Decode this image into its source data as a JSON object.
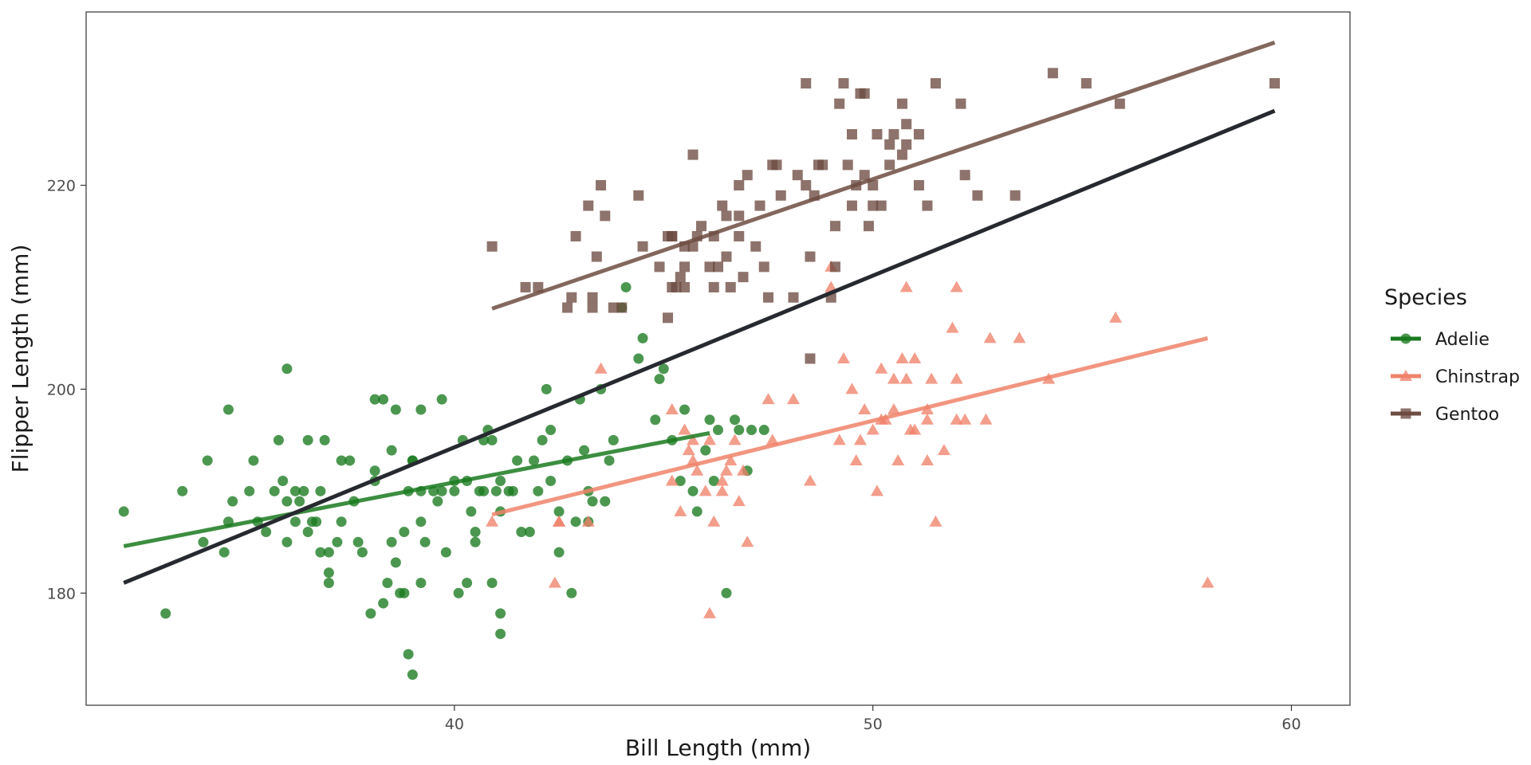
{
  "chart_data": {
    "type": "scatter",
    "xlabel": "Bill Length (mm)",
    "ylabel": "Flipper Length (mm)",
    "xlim": [
      31.2,
      61.4
    ],
    "ylim": [
      169,
      237
    ],
    "xticks": [
      40,
      50,
      60
    ],
    "yticks": [
      180,
      200,
      220
    ],
    "grid": false,
    "legend": {
      "title": "Species",
      "placement": "right"
    },
    "series": [
      {
        "name": "Adelie",
        "color": "#1a7a1f",
        "marker": "circle",
        "points": [
          [
            32.1,
            188
          ],
          [
            33.1,
            178
          ],
          [
            33.5,
            190
          ],
          [
            34.0,
            185
          ],
          [
            34.1,
            193
          ],
          [
            34.5,
            184
          ],
          [
            34.6,
            187
          ],
          [
            34.6,
            198
          ],
          [
            34.7,
            189
          ],
          [
            35.1,
            190
          ],
          [
            35.2,
            193
          ],
          [
            35.3,
            187
          ],
          [
            35.5,
            186
          ],
          [
            35.7,
            190
          ],
          [
            35.8,
            195
          ],
          [
            35.9,
            191
          ],
          [
            36.0,
            185
          ],
          [
            36.0,
            189
          ],
          [
            36.0,
            202
          ],
          [
            36.2,
            187
          ],
          [
            36.2,
            190
          ],
          [
            36.3,
            189
          ],
          [
            36.4,
            190
          ],
          [
            36.5,
            195
          ],
          [
            36.5,
            186
          ],
          [
            36.6,
            187
          ],
          [
            36.7,
            187
          ],
          [
            36.8,
            184
          ],
          [
            36.8,
            190
          ],
          [
            36.9,
            195
          ],
          [
            37.0,
            182
          ],
          [
            37.0,
            181
          ],
          [
            37.0,
            184
          ],
          [
            37.2,
            185
          ],
          [
            37.3,
            187
          ],
          [
            37.3,
            193
          ],
          [
            37.5,
            193
          ],
          [
            37.6,
            189
          ],
          [
            37.7,
            185
          ],
          [
            37.8,
            184
          ],
          [
            38.0,
            178
          ],
          [
            38.1,
            192
          ],
          [
            38.1,
            191
          ],
          [
            38.1,
            199
          ],
          [
            38.3,
            179
          ],
          [
            38.3,
            199
          ],
          [
            38.4,
            181
          ],
          [
            38.5,
            185
          ],
          [
            38.5,
            194
          ],
          [
            38.6,
            183
          ],
          [
            38.6,
            198
          ],
          [
            38.7,
            180
          ],
          [
            38.8,
            180
          ],
          [
            38.8,
            186
          ],
          [
            38.9,
            190
          ],
          [
            38.9,
            174
          ],
          [
            39.0,
            172
          ],
          [
            39.0,
            193
          ],
          [
            39.0,
            193
          ],
          [
            39.2,
            181
          ],
          [
            39.2,
            187
          ],
          [
            39.2,
            190
          ],
          [
            39.2,
            198
          ],
          [
            39.3,
            185
          ],
          [
            39.5,
            190
          ],
          [
            39.6,
            189
          ],
          [
            39.7,
            190
          ],
          [
            39.7,
            199
          ],
          [
            39.8,
            184
          ],
          [
            40.0,
            191
          ],
          [
            40.0,
            190
          ],
          [
            40.1,
            180
          ],
          [
            40.2,
            195
          ],
          [
            40.3,
            181
          ],
          [
            40.3,
            191
          ],
          [
            40.4,
            188
          ],
          [
            40.5,
            185
          ],
          [
            40.5,
            186
          ],
          [
            40.6,
            190
          ],
          [
            40.7,
            190
          ],
          [
            40.7,
            195
          ],
          [
            40.8,
            196
          ],
          [
            40.9,
            195
          ],
          [
            40.9,
            181
          ],
          [
            41.0,
            190
          ],
          [
            41.1,
            176
          ],
          [
            41.1,
            188
          ],
          [
            41.1,
            178
          ],
          [
            41.1,
            191
          ],
          [
            41.3,
            190
          ],
          [
            41.4,
            190
          ],
          [
            41.5,
            193
          ],
          [
            41.6,
            186
          ],
          [
            41.8,
            186
          ],
          [
            41.9,
            193
          ],
          [
            42.0,
            190
          ],
          [
            42.1,
            195
          ],
          [
            42.2,
            200
          ],
          [
            42.3,
            196
          ],
          [
            42.3,
            191
          ],
          [
            42.5,
            188
          ],
          [
            42.5,
            184
          ],
          [
            42.7,
            193
          ],
          [
            42.8,
            180
          ],
          [
            42.9,
            187
          ],
          [
            43.0,
            199
          ],
          [
            43.1,
            194
          ],
          [
            43.2,
            187
          ],
          [
            43.2,
            190
          ],
          [
            43.3,
            189
          ],
          [
            43.5,
            200
          ],
          [
            43.6,
            189
          ],
          [
            43.7,
            193
          ],
          [
            43.8,
            195
          ],
          [
            44.0,
            208
          ],
          [
            44.1,
            210
          ],
          [
            44.4,
            203
          ],
          [
            44.5,
            205
          ],
          [
            44.8,
            197
          ],
          [
            44.9,
            201
          ],
          [
            45.0,
            202
          ],
          [
            45.2,
            195
          ],
          [
            45.4,
            191
          ],
          [
            45.5,
            198
          ],
          [
            45.7,
            190
          ],
          [
            45.8,
            188
          ],
          [
            46.0,
            194
          ],
          [
            46.1,
            197
          ],
          [
            46.2,
            191
          ],
          [
            46.3,
            196
          ],
          [
            46.5,
            180
          ],
          [
            46.7,
            197
          ],
          [
            46.8,
            196
          ],
          [
            47.0,
            192
          ],
          [
            47.1,
            196
          ],
          [
            47.4,
            196
          ]
        ],
        "trend": [
          [
            32.1,
            184.6
          ],
          [
            46.1,
            195.7
          ]
        ]
      },
      {
        "name": "Chinstrap",
        "color": "#f0826a",
        "marker": "triangle",
        "points": [
          [
            40.9,
            187
          ],
          [
            42.4,
            181
          ],
          [
            42.5,
            187
          ],
          [
            42.5,
            187
          ],
          [
            43.2,
            187
          ],
          [
            43.5,
            202
          ],
          [
            45.2,
            191
          ],
          [
            45.2,
            198
          ],
          [
            45.4,
            188
          ],
          [
            45.5,
            196
          ],
          [
            45.6,
            194
          ],
          [
            45.7,
            195
          ],
          [
            45.7,
            193
          ],
          [
            45.8,
            192
          ],
          [
            46.0,
            190
          ],
          [
            46.1,
            178
          ],
          [
            46.1,
            195
          ],
          [
            46.2,
            187
          ],
          [
            46.4,
            190
          ],
          [
            46.4,
            191
          ],
          [
            46.5,
            192
          ],
          [
            46.6,
            193
          ],
          [
            46.7,
            195
          ],
          [
            46.8,
            189
          ],
          [
            46.9,
            192
          ],
          [
            47.0,
            185
          ],
          [
            47.5,
            199
          ],
          [
            47.6,
            195
          ],
          [
            48.1,
            199
          ],
          [
            48.5,
            191
          ],
          [
            49.0,
            210
          ],
          [
            49.0,
            212
          ],
          [
            49.2,
            195
          ],
          [
            49.3,
            203
          ],
          [
            49.5,
            200
          ],
          [
            49.6,
            193
          ],
          [
            49.7,
            195
          ],
          [
            49.8,
            198
          ],
          [
            50.0,
            196
          ],
          [
            50.1,
            190
          ],
          [
            50.2,
            197
          ],
          [
            50.2,
            202
          ],
          [
            50.3,
            197
          ],
          [
            50.5,
            198
          ],
          [
            50.5,
            201
          ],
          [
            50.6,
            193
          ],
          [
            50.7,
            203
          ],
          [
            50.8,
            201
          ],
          [
            50.8,
            210
          ],
          [
            50.9,
            196
          ],
          [
            51.0,
            196
          ],
          [
            51.0,
            203
          ],
          [
            51.3,
            193
          ],
          [
            51.3,
            197
          ],
          [
            51.3,
            198
          ],
          [
            51.4,
            201
          ],
          [
            51.5,
            187
          ],
          [
            51.7,
            194
          ],
          [
            51.9,
            206
          ],
          [
            52.0,
            197
          ],
          [
            52.0,
            201
          ],
          [
            52.0,
            210
          ],
          [
            52.2,
            197
          ],
          [
            52.7,
            197
          ],
          [
            52.8,
            205
          ],
          [
            53.5,
            205
          ],
          [
            54.2,
            201
          ],
          [
            55.8,
            207
          ],
          [
            58.0,
            181
          ]
        ],
        "trend": [
          [
            40.9,
            187.7
          ],
          [
            58.0,
            205.0
          ]
        ]
      },
      {
        "name": "Gentoo",
        "color": "#6d4c41",
        "marker": "square",
        "points": [
          [
            40.9,
            214
          ],
          [
            41.7,
            210
          ],
          [
            42.0,
            210
          ],
          [
            42.7,
            208
          ],
          [
            42.8,
            209
          ],
          [
            42.9,
            215
          ],
          [
            43.2,
            218
          ],
          [
            43.3,
            208
          ],
          [
            43.3,
            209
          ],
          [
            43.4,
            213
          ],
          [
            43.5,
            220
          ],
          [
            43.6,
            217
          ],
          [
            43.8,
            208
          ],
          [
            44.0,
            208
          ],
          [
            44.5,
            214
          ],
          [
            44.9,
            212
          ],
          [
            45.1,
            215
          ],
          [
            45.1,
            207
          ],
          [
            45.2,
            215
          ],
          [
            45.2,
            215
          ],
          [
            45.2,
            210
          ],
          [
            45.3,
            210
          ],
          [
            45.4,
            211
          ],
          [
            45.5,
            212
          ],
          [
            45.5,
            214
          ],
          [
            45.5,
            210
          ],
          [
            45.7,
            214
          ],
          [
            45.8,
            215
          ],
          [
            45.9,
            216
          ],
          [
            46.1,
            212
          ],
          [
            46.2,
            215
          ],
          [
            46.2,
            210
          ],
          [
            46.3,
            212
          ],
          [
            46.4,
            218
          ],
          [
            46.5,
            213
          ],
          [
            46.5,
            217
          ],
          [
            46.6,
            210
          ],
          [
            46.8,
            215
          ],
          [
            46.8,
            217
          ],
          [
            46.9,
            211
          ],
          [
            47.2,
            214
          ],
          [
            47.4,
            212
          ],
          [
            47.5,
            209
          ],
          [
            47.6,
            222
          ],
          [
            47.7,
            222
          ],
          [
            47.8,
            219
          ],
          [
            48.1,
            209
          ],
          [
            48.2,
            221
          ],
          [
            48.4,
            230
          ],
          [
            48.4,
            220
          ],
          [
            48.5,
            213
          ],
          [
            48.6,
            219
          ],
          [
            48.7,
            222
          ],
          [
            48.8,
            222
          ],
          [
            49.0,
            209
          ],
          [
            49.1,
            212
          ],
          [
            49.1,
            216
          ],
          [
            49.2,
            228
          ],
          [
            49.4,
            222
          ],
          [
            49.5,
            225
          ],
          [
            49.5,
            218
          ],
          [
            49.6,
            220
          ],
          [
            49.8,
            221
          ],
          [
            49.8,
            229
          ],
          [
            49.9,
            216
          ],
          [
            50.0,
            220
          ],
          [
            50.1,
            225
          ],
          [
            50.2,
            218
          ],
          [
            50.4,
            224
          ],
          [
            50.4,
            222
          ],
          [
            50.5,
            225
          ],
          [
            50.7,
            223
          ],
          [
            50.8,
            224
          ],
          [
            50.8,
            226
          ],
          [
            51.1,
            220
          ],
          [
            51.3,
            218
          ],
          [
            51.5,
            230
          ],
          [
            52.1,
            228
          ],
          [
            52.2,
            221
          ],
          [
            52.5,
            219
          ],
          [
            53.4,
            219
          ],
          [
            54.3,
            231
          ],
          [
            55.1,
            230
          ],
          [
            55.9,
            228
          ],
          [
            59.6,
            230
          ],
          [
            50.0,
            218
          ],
          [
            49.3,
            230
          ],
          [
            47.3,
            218
          ],
          [
            45.7,
            223
          ],
          [
            44.4,
            219
          ],
          [
            46.8,
            220
          ],
          [
            48.5,
            203
          ],
          [
            49.7,
            229
          ],
          [
            50.7,
            228
          ],
          [
            51.1,
            225
          ],
          [
            47.0,
            221
          ]
        ],
        "trend": [
          [
            40.9,
            207.9
          ],
          [
            59.6,
            234.0
          ]
        ]
      }
    ],
    "overall_trend": {
      "color": "#262a30",
      "line": [
        [
          32.1,
          181.0
        ],
        [
          59.6,
          227.3
        ]
      ]
    }
  }
}
